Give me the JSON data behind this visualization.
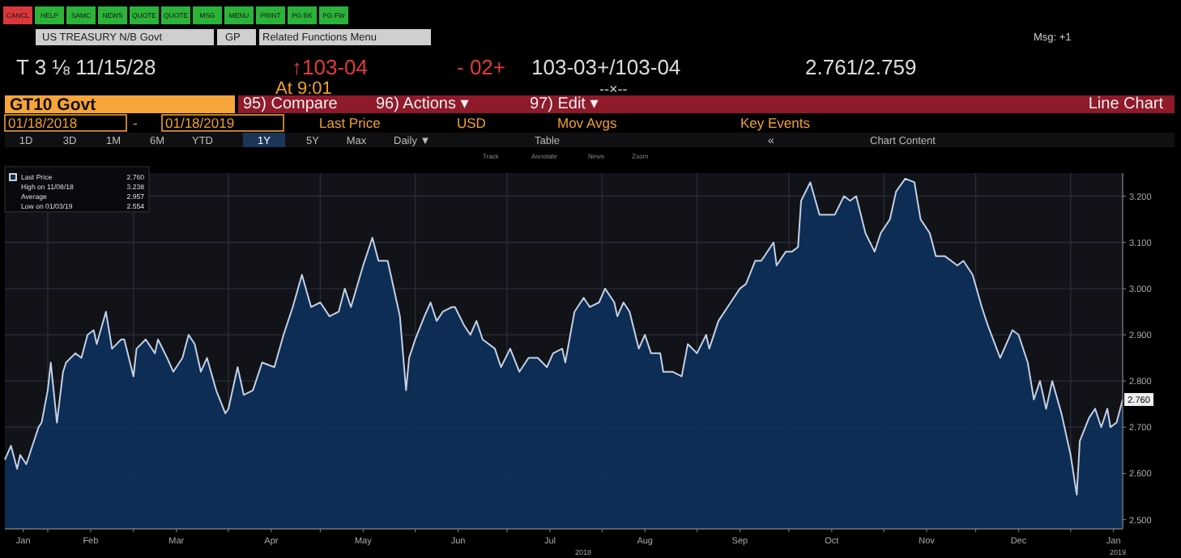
{
  "chart_data": {
    "type": "area",
    "title": "GT10 Govt",
    "xlim": [
      "2018-01-18",
      "2019-01-18"
    ],
    "xticks": [
      {
        "value": "2018-01-24",
        "label": "Jan"
      },
      {
        "value": "2018-02-15",
        "label": "Feb"
      },
      {
        "value": "2018-03-15",
        "label": "Mar"
      },
      {
        "value": "2018-04-15",
        "label": "Apr"
      },
      {
        "value": "2018-05-15",
        "label": "May"
      },
      {
        "value": "2018-06-15",
        "label": "Jun"
      },
      {
        "value": "2018-07-15",
        "label": "Jul"
      },
      {
        "value": "2018-08-15",
        "label": "Aug"
      },
      {
        "value": "2018-09-15",
        "label": "Sep"
      },
      {
        "value": "2018-10-15",
        "label": "Oct"
      },
      {
        "value": "2018-11-15",
        "label": "Nov"
      },
      {
        "value": "2018-12-15",
        "label": "Dec"
      },
      {
        "value": "2019-01-15",
        "label": "Jan"
      },
      {
        "value": "2018-02-01",
        "label": null
      },
      {
        "value": "2018-03-01",
        "label": null
      },
      {
        "value": "2018-04-01",
        "label": null
      },
      {
        "value": "2018-05-01",
        "label": null
      },
      {
        "value": "2018-06-01",
        "label": null
      },
      {
        "value": "2018-07-01",
        "label": null
      },
      {
        "value": "2018-08-01",
        "label": null
      },
      {
        "value": "2018-09-01",
        "label": null
      },
      {
        "value": "2018-10-01",
        "label": null
      },
      {
        "value": "2018-11-01",
        "label": null
      },
      {
        "value": "2018-12-01",
        "label": null
      },
      {
        "value": "2019-01-01",
        "label": null
      }
    ],
    "ylim": [
      2.48,
      3.25
    ],
    "yticks": [
      {
        "value": 2.5,
        "label": "2.500"
      },
      {
        "value": 2.6,
        "label": "2.600"
      },
      {
        "value": 2.7,
        "label": "2.700"
      },
      {
        "value": 2.8,
        "label": "2.800"
      },
      {
        "value": 2.9,
        "label": "2.900"
      },
      {
        "value": 3.0,
        "label": "3.000"
      },
      {
        "value": 3.1,
        "label": "3.100"
      },
      {
        "value": 3.2,
        "label": "3.200"
      }
    ],
    "grid": true,
    "legend": "top left",
    "series": [
      {
        "name": "Last Price",
        "color": "#0e2f57",
        "x": [
          "2018-01-18",
          "2018-01-20",
          "2018-01-22",
          "2018-01-23",
          "2018-01-25",
          "2018-01-29",
          "2018-01-30",
          "2018-02-01",
          "2018-02-02",
          "2018-02-04",
          "2018-02-06",
          "2018-02-07",
          "2018-02-10",
          "2018-02-12",
          "2018-02-14",
          "2018-02-16",
          "2018-02-17",
          "2018-02-20",
          "2018-02-22",
          "2018-02-25",
          "2018-02-26",
          "2018-03-01",
          "2018-03-02",
          "2018-03-05",
          "2018-03-08",
          "2018-03-09",
          "2018-03-12",
          "2018-03-14",
          "2018-03-17",
          "2018-03-19",
          "2018-03-21",
          "2018-03-23",
          "2018-03-25",
          "2018-03-28",
          "2018-03-31",
          "2018-04-01",
          "2018-04-04",
          "2018-04-06",
          "2018-04-09",
          "2018-04-12",
          "2018-04-16",
          "2018-04-19",
          "2018-04-22",
          "2018-04-25",
          "2018-04-28",
          "2018-05-01",
          "2018-05-04",
          "2018-05-07",
          "2018-05-09",
          "2018-05-11",
          "2018-05-15",
          "2018-05-18",
          "2018-05-20",
          "2018-05-23",
          "2018-05-26",
          "2018-05-27",
          "2018-05-29",
          "2018-05-30",
          "2018-06-01",
          "2018-06-04",
          "2018-06-06",
          "2018-06-08",
          "2018-06-10",
          "2018-06-13",
          "2018-06-14",
          "2018-06-17",
          "2018-06-19",
          "2018-06-21",
          "2018-06-23",
          "2018-06-27",
          "2018-06-29",
          "2018-07-02",
          "2018-07-05",
          "2018-07-08",
          "2018-07-11",
          "2018-07-14",
          "2018-07-16",
          "2018-07-19",
          "2018-07-20",
          "2018-07-23",
          "2018-07-26",
          "2018-07-28",
          "2018-07-31",
          "2018-08-02",
          "2018-08-05",
          "2018-08-06",
          "2018-08-08",
          "2018-08-10",
          "2018-08-13",
          "2018-08-15",
          "2018-08-17",
          "2018-08-20",
          "2018-08-21",
          "2018-08-24",
          "2018-08-27",
          "2018-08-29",
          "2018-09-01",
          "2018-09-04",
          "2018-09-05",
          "2018-09-08",
          "2018-09-11",
          "2018-09-12",
          "2018-09-15",
          "2018-09-17",
          "2018-09-20",
          "2018-09-22",
          "2018-09-26",
          "2018-09-27",
          "2018-09-30",
          "2018-10-02",
          "2018-10-04",
          "2018-10-05",
          "2018-10-08",
          "2018-10-11",
          "2018-10-12",
          "2018-10-16",
          "2018-10-19",
          "2018-10-21",
          "2018-10-23",
          "2018-10-26",
          "2018-10-29",
          "2018-10-31",
          "2018-11-03",
          "2018-11-05",
          "2018-11-08",
          "2018-11-11",
          "2018-11-13",
          "2018-11-16",
          "2018-11-18",
          "2018-11-21",
          "2018-11-25",
          "2018-11-27",
          "2018-11-30",
          "2018-12-03",
          "2018-12-05",
          "2018-12-09",
          "2018-12-11",
          "2018-12-13",
          "2018-12-15",
          "2018-12-18",
          "2018-12-20",
          "2018-12-22",
          "2018-12-24",
          "2018-12-26",
          "2018-12-29",
          "2019-01-01",
          "2019-01-03",
          "2019-01-04",
          "2019-01-07",
          "2019-01-09",
          "2019-01-11",
          "2019-01-13",
          "2019-01-14",
          "2019-01-16",
          "2019-01-18"
        ],
        "values": [
          2.63,
          2.66,
          2.61,
          2.64,
          2.62,
          2.7,
          2.71,
          2.78,
          2.84,
          2.71,
          2.82,
          2.84,
          2.86,
          2.85,
          2.9,
          2.91,
          2.88,
          2.95,
          2.87,
          2.89,
          2.89,
          2.81,
          2.87,
          2.89,
          2.86,
          2.89,
          2.85,
          2.82,
          2.85,
          2.9,
          2.88,
          2.82,
          2.85,
          2.78,
          2.73,
          2.74,
          2.83,
          2.77,
          2.78,
          2.84,
          2.83,
          2.9,
          2.96,
          3.03,
          2.96,
          2.97,
          2.94,
          2.95,
          3.0,
          2.96,
          3.05,
          3.11,
          3.06,
          3.06,
          2.97,
          2.94,
          2.78,
          2.85,
          2.89,
          2.94,
          2.97,
          2.93,
          2.95,
          2.96,
          2.96,
          2.92,
          2.9,
          2.93,
          2.89,
          2.87,
          2.83,
          2.87,
          2.82,
          2.85,
          2.85,
          2.83,
          2.86,
          2.87,
          2.84,
          2.95,
          2.98,
          2.96,
          2.97,
          3.0,
          2.97,
          2.94,
          2.97,
          2.95,
          2.87,
          2.9,
          2.86,
          2.86,
          2.82,
          2.82,
          2.81,
          2.88,
          2.86,
          2.9,
          2.87,
          2.93,
          2.96,
          2.97,
          3.0,
          3.01,
          3.06,
          3.06,
          3.1,
          3.05,
          3.08,
          3.08,
          3.09,
          3.19,
          3.23,
          3.16,
          3.16,
          3.16,
          3.2,
          3.19,
          3.2,
          3.12,
          3.08,
          3.12,
          3.15,
          3.21,
          3.238,
          3.23,
          3.15,
          3.12,
          3.07,
          3.07,
          3.05,
          3.06,
          3.03,
          2.96,
          2.92,
          2.85,
          2.88,
          2.91,
          2.9,
          2.84,
          2.76,
          2.8,
          2.74,
          2.8,
          2.73,
          2.64,
          2.554,
          2.67,
          2.72,
          2.74,
          2.7,
          2.74,
          2.7,
          2.71,
          2.76
        ]
      }
    ],
    "annotations": [
      "CANCL",
      "HELP",
      "SAMC",
      "NEWS",
      "QUOTE",
      "QUOTE",
      "MSG",
      "MENU",
      "PRINT",
      "PG BK",
      "PG FW",
      "US TREASURY N/B Govt",
      "GP",
      "Related Functions Menu",
      "Msg: +1",
      "T 3 ⅛ 11/15/28",
      "↑103-04",
      "- 02+",
      "103-03+/103-04",
      "2.761/2.759",
      "At 9:01",
      "--×--",
      "95) Compare",
      "96) Actions ▾",
      "97) Edit ▾",
      "Line Chart",
      "01/18/2018",
      "-",
      "01/18/2019",
      "Last Price",
      "USD",
      "Mov Avgs",
      "Key Events",
      "1D",
      "3D",
      "1M",
      "6M",
      "YTD",
      "1Y",
      "5Y",
      "Max",
      "Daily ▼",
      "Table",
      "«",
      "Chart Content",
      "Track",
      "Annotate",
      "News",
      "Zoom",
      "2.760",
      "High on 11/08/18",
      "3.238",
      "Average",
      "2.957",
      "Low on 01/03/19",
      "2.554",
      "2018",
      "2019",
      {
        "text": "2.760",
        "x": "2019-01-18",
        "y": 2.76
      }
    ]
  }
}
